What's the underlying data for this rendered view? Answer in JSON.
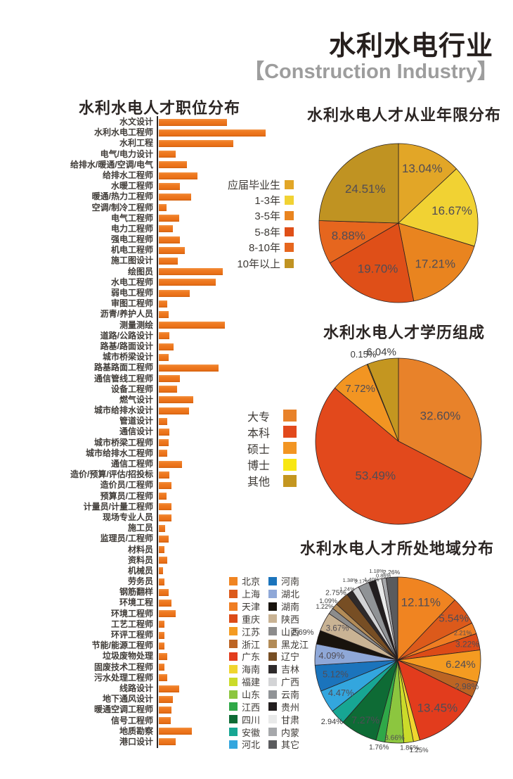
{
  "header": {
    "title": "水利水电行业",
    "subtitle": "【Construction Industry】"
  },
  "chart_data": [
    {
      "type": "bar",
      "title": "水利水电人才职位分布",
      "orientation": "horizontal",
      "axis_labels_shown": false,
      "value_scale": "relative, longest bar = 100",
      "bar_color": "#EE7A1F",
      "categories": [
        "水文设计",
        "水利水电工程师",
        "水利工程",
        "电气/电力设计",
        "给排水/暖通/空调/电气",
        "给排水工程师",
        "水暖工程师",
        "暖通/热力工程师",
        "空调/制冷工程师",
        "电气工程师",
        "电力工程师",
        "强电工程师",
        "机电工程师",
        "施工图设计",
        "绘图员",
        "水电工程师",
        "弱电工程师",
        "审图工程师",
        "沥青/养护人员",
        "测量测绘",
        "道路/公路设计",
        "路基/路面设计",
        "城市桥梁设计",
        "路基路面工程师",
        "通信管线工程师",
        "设备工程师",
        "燃气设计",
        "城市给排水设计",
        "管道设计",
        "通信设计",
        "城市桥梁工程师",
        "城市给排水工程师",
        "通信工程师",
        "造价/预算/评估/招投标",
        "造价员/工程师",
        "预算员/工程师",
        "计量员/计量工程师",
        "现场专业人员",
        "施工员",
        "监理员/工程师",
        "材料员",
        "资料员",
        "机械员",
        "劳务员",
        "钢筋翻样",
        "环境工程",
        "环境工程师",
        "工艺工程师",
        "环评工程师",
        "节能/能源工程师",
        "垃圾废物处理",
        "固废技术工程师",
        "污水处理工程师",
        "线路设计",
        "地下通风设计",
        "暖通空调工程师",
        "信号工程师",
        "地质勘察",
        "港口设计"
      ],
      "values": [
        64,
        100,
        70,
        16,
        26,
        36,
        20,
        30,
        7,
        19,
        13,
        20,
        24,
        18,
        60,
        53,
        29,
        8,
        9,
        62,
        10,
        14,
        9,
        56,
        20,
        17,
        32,
        28,
        8,
        10,
        9,
        8,
        22,
        10,
        12,
        7,
        12,
        12,
        6,
        9,
        5,
        8,
        4,
        5,
        9,
        12,
        16,
        5,
        5,
        5,
        8,
        5,
        8,
        19,
        13,
        12,
        11,
        31,
        16
      ]
    },
    {
      "type": "pie",
      "title": "水利水电人才从业年限分布",
      "legend_position": "left-of-chart",
      "start_angle_deg": 0,
      "labels": [
        "应届毕业生",
        "1-3年",
        "3-5年",
        "5-8年",
        "8-10年",
        "10年以上"
      ],
      "values": [
        13.04,
        16.67,
        17.21,
        19.7,
        8.88,
        24.51
      ],
      "colors": [
        "#E2A627",
        "#F1D233",
        "#E9841F",
        "#DF4F18",
        "#E6661E",
        "#C09322"
      ],
      "label_r": [
        0.75,
        0.69,
        0.69,
        0.63,
        0.65,
        0.6
      ],
      "label_fs": [
        17,
        17,
        17,
        17,
        17,
        17
      ]
    },
    {
      "type": "pie",
      "title": "水利水电人才学历组成",
      "legend_position": "left-of-chart",
      "start_angle_deg": 0,
      "labels": [
        "大专",
        "本科",
        "硕士",
        "博士",
        "其他"
      ],
      "values": [
        32.6,
        53.49,
        7.72,
        0.15,
        6.04
      ],
      "colors": [
        "#E8822A",
        "#E2491C",
        "#F29522",
        "#F8E712",
        "#C49620"
      ],
      "label_r": [
        0.59,
        0.5,
        0.78,
        1.13,
        1.09
      ],
      "label_fs": [
        17,
        17,
        15,
        13,
        15
      ]
    },
    {
      "type": "pie",
      "title": "水利水电人才所处地域分布",
      "legend_position": "left-of-chart",
      "legend_columns": 2,
      "start_angle_deg": 0,
      "labels": [
        "北京",
        "上海",
        "天津",
        "重庆",
        "江苏",
        "浙江",
        "广东",
        "海南",
        "福建",
        "山东",
        "江西",
        "四川",
        "安徽",
        "河北",
        "河南",
        "湖北",
        "湖南",
        "陕西",
        "山西",
        "黑龙江",
        "辽宁",
        "吉林",
        "广西",
        "云南",
        "贵州",
        "甘肃",
        "内蒙",
        "其它"
      ],
      "values": [
        12.11,
        5.54,
        2.21,
        3.22,
        6.24,
        2.98,
        13.45,
        1.25,
        1.86,
        3.66,
        1.76,
        7.27,
        2.94,
        4.47,
        5.12,
        4.09,
        2.69,
        3.67,
        1.22,
        1.09,
        2.75,
        1.24,
        1.38,
        2.17,
        1.4,
        1.18,
        0.86,
        2.26
      ],
      "colors": [
        "#F08421",
        "#DC5A1B",
        "#EF7D22",
        "#DC4B17",
        "#F49B21",
        "#BC6423",
        "#E23C1D",
        "#F0D52E",
        "#CBDB2A",
        "#8CC63F",
        "#2FA848",
        "#0E6B35",
        "#17A693",
        "#33A6DE",
        "#1B74BC",
        "#8FA8D8",
        "#18130D",
        "#C9B394",
        "#8C8C8C",
        "#B28B57",
        "#774E24",
        "#2E2A2B",
        "#D3D4D6",
        "#909396",
        "#221E1F",
        "#E9EAEA",
        "#A6A8AB",
        "#5A5B5E"
      ],
      "label_r": [
        0.75,
        0.84,
        0.85,
        0.86,
        0.76,
        0.89,
        0.75,
        1.12,
        1.07,
        0.94,
        1.08,
        0.82,
        1.09,
        0.79,
        0.77,
        0.8,
        1.19,
        0.82,
        1.09,
        1.1,
        1.1,
        1.05,
        1.12,
        1.04,
        1.02,
        1.1,
        1.03,
        1.06
      ],
      "label_fs": [
        17,
        15,
        9,
        12,
        15,
        12,
        17,
        9.5,
        9.5,
        10,
        10,
        14,
        11,
        13,
        13,
        13,
        11,
        11.5,
        9,
        9,
        10.5,
        7.5,
        7.5,
        7.5,
        7.5,
        7.5,
        7.5,
        8.5
      ]
    }
  ]
}
